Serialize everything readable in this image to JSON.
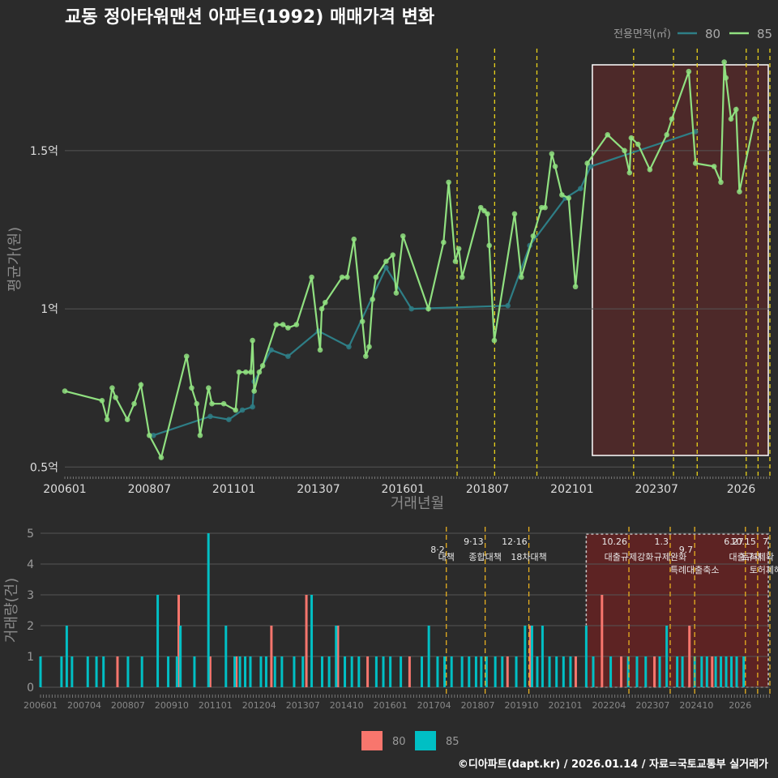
{
  "title": "교동 정아타워맨션 아파트(1992) 매매가격 변화",
  "footer": "©디아파트(dapt.kr) / 2026.01.14 / 자료=국토교통부 실거래가",
  "colors": {
    "bg": "#2b2b2b",
    "grid": "#555555",
    "s80_line": "#2e7e86",
    "s85_line": "#90e080",
    "bar80": "#f8766d",
    "bar85": "#00bfc4",
    "policy": "#e8d11a",
    "highlight": "#5a2a2a"
  },
  "chart_data": [
    {
      "type": "line",
      "name": "price",
      "title": "교동 정아타워맨션 아파트(1992) 매매가격 변화",
      "xlabel": "거래년월",
      "ylabel": "평균가(원)",
      "legend_title": "전용면적(㎡)",
      "legend_position": "top-right",
      "x_ticks": [
        "200601",
        "200807",
        "201101",
        "201307",
        "201601",
        "201807",
        "202101",
        "202307",
        "2026"
      ],
      "y_ticks": [
        "0.5억",
        "1억",
        "1.5억"
      ],
      "ylim": [
        0.47,
        1.83
      ],
      "unit": "억원",
      "series": [
        {
          "name": "80",
          "x": [
            2008.62,
            2010.3,
            2010.85,
            2011.25,
            2011.55,
            2011.6,
            2012.1,
            2012.6,
            2013.5,
            2014.4,
            2015.5,
            2016.25,
            2019.1,
            2019.75,
            2020.8,
            2021.25,
            2021.55,
            2024.65
          ],
          "y": [
            0.6,
            0.66,
            0.65,
            0.68,
            0.69,
            0.77,
            0.87,
            0.85,
            0.93,
            0.88,
            1.13,
            1.0,
            1.01,
            1.2,
            1.35,
            1.38,
            1.45,
            1.56
          ]
        },
        {
          "name": "85",
          "x": [
            2006.0,
            2007.1,
            2007.25,
            2007.4,
            2007.5,
            2007.85,
            2008.05,
            2008.25,
            2008.5,
            2008.85,
            2009.6,
            2009.75,
            2009.9,
            2010.0,
            2010.25,
            2010.35,
            2010.7,
            2011.05,
            2011.15,
            2011.35,
            2011.5,
            2011.55,
            2011.6,
            2011.75,
            2011.85,
            2012.25,
            2012.45,
            2012.6,
            2012.85,
            2013.3,
            2013.55,
            2013.6,
            2013.7,
            2014.2,
            2014.35,
            2014.55,
            2014.8,
            2014.9,
            2015.0,
            2015.1,
            2015.2,
            2015.5,
            2015.7,
            2015.8,
            2016.0,
            2016.75,
            2017.2,
            2017.35,
            2017.55,
            2017.65,
            2017.75,
            2018.3,
            2018.4,
            2018.5,
            2018.55,
            2018.7,
            2019.3,
            2019.5,
            2019.85,
            2020.1,
            2020.2,
            2020.4,
            2020.5,
            2020.7,
            2020.9,
            2021.1,
            2021.45,
            2022.05,
            2022.55,
            2022.7,
            2022.75,
            2022.95,
            2023.3,
            2023.8,
            2023.95,
            2024.45,
            2024.65,
            2025.2,
            2025.4,
            2025.5,
            2025.55,
            2025.7,
            2025.85,
            2025.95,
            2026.4
          ],
          "y": [
            0.74,
            0.71,
            0.65,
            0.75,
            0.72,
            0.65,
            0.7,
            0.76,
            0.6,
            0.53,
            0.85,
            0.75,
            0.7,
            0.6,
            0.75,
            0.7,
            0.7,
            0.68,
            0.8,
            0.8,
            0.8,
            0.9,
            0.74,
            0.8,
            0.82,
            0.95,
            0.95,
            0.94,
            0.95,
            1.1,
            0.87,
            1.0,
            1.02,
            1.1,
            1.1,
            1.22,
            0.96,
            0.85,
            0.88,
            1.03,
            1.1,
            1.15,
            1.17,
            1.05,
            1.23,
            1.0,
            1.21,
            1.4,
            1.15,
            1.19,
            1.1,
            1.32,
            1.31,
            1.3,
            1.2,
            0.9,
            1.3,
            1.1,
            1.23,
            1.32,
            1.32,
            1.49,
            1.45,
            1.36,
            1.35,
            1.07,
            1.46,
            1.55,
            1.5,
            1.43,
            1.54,
            1.52,
            1.44,
            1.55,
            1.6,
            1.75,
            1.46,
            1.45,
            1.4,
            1.78,
            1.73,
            1.6,
            1.63,
            1.37,
            1.6
          ]
        }
      ]
    },
    {
      "type": "bar",
      "name": "volume",
      "ylabel": "거래량(건)",
      "x_ticks": [
        "200601",
        "200704",
        "200807",
        "200910",
        "201101",
        "201204",
        "201307",
        "201410",
        "201601",
        "201704",
        "201807",
        "201910",
        "202101",
        "202204",
        "202307",
        "202410",
        "2026"
      ],
      "y_ticks": [
        "0",
        "1",
        "2",
        "3",
        "4",
        "5"
      ],
      "ylim": [
        0,
        5
      ],
      "unit": "건",
      "legend_position": "bottom",
      "series": [
        {
          "name": "80",
          "x": [
            2008.2,
            2009.95,
            2010.85,
            2011.6,
            2012.6,
            2013.6,
            2014.5,
            2015.35,
            2016.55,
            2019.35,
            2020.0,
            2021.3,
            2022.05,
            2022.6,
            2023.55,
            2024.55,
            2025.2
          ],
          "y": [
            1,
            3,
            1,
            1,
            2,
            3,
            2,
            1,
            1,
            1,
            2,
            1,
            3,
            1,
            1,
            2,
            1
          ]
        },
        {
          "name": "85",
          "x": [
            2006.0,
            2006.6,
            2006.75,
            2006.9,
            2007.35,
            2007.6,
            2007.8,
            2008.5,
            2008.9,
            2009.35,
            2009.65,
            2009.9,
            2010.0,
            2010.4,
            2010.8,
            2011.3,
            2011.55,
            2011.7,
            2011.85,
            2012.0,
            2012.3,
            2012.45,
            2012.7,
            2012.9,
            2013.25,
            2013.5,
            2013.75,
            2014.05,
            2014.25,
            2014.45,
            2014.7,
            2014.9,
            2015.1,
            2015.6,
            2015.8,
            2016.0,
            2016.3,
            2016.9,
            2017.1,
            2017.35,
            2017.55,
            2017.75,
            2018.05,
            2018.25,
            2018.45,
            2018.6,
            2018.75,
            2019.0,
            2019.2,
            2019.6,
            2019.85,
            2020.05,
            2020.2,
            2020.35,
            2020.55,
            2020.75,
            2020.95,
            2021.15,
            2021.6,
            2021.8,
            2022.3,
            2022.8,
            2023.05,
            2023.3,
            2023.7,
            2023.9,
            2024.2,
            2024.35,
            2024.7,
            2024.9,
            2025.05,
            2025.3,
            2025.45,
            2025.6,
            2025.75,
            2025.9,
            2026.1
          ],
          "y": [
            1,
            1,
            2,
            1,
            1,
            1,
            1,
            1,
            1,
            3,
            1,
            1,
            2,
            1,
            5,
            2,
            1,
            1,
            1,
            1,
            1,
            1,
            1,
            1,
            1,
            1,
            3,
            1,
            1,
            2,
            1,
            1,
            1,
            1,
            1,
            1,
            1,
            1,
            2,
            1,
            1,
            1,
            1,
            1,
            1,
            1,
            1,
            1,
            1,
            1,
            2,
            2,
            1,
            2,
            1,
            1,
            1,
            1,
            2,
            1,
            1,
            1,
            1,
            1,
            1,
            2,
            1,
            1,
            1,
            1,
            1,
            1,
            1,
            1,
            1,
            1,
            1
          ]
        }
      ]
    }
  ],
  "policy_events": [
    {
      "x": 2017.6,
      "date": "8·2",
      "label": "대책",
      "date_line": 1,
      "label_line": 1
    },
    {
      "x": 2018.71,
      "date": "9·13",
      "label": "종합대책",
      "date_line": 0,
      "label_line": 1
    },
    {
      "x": 2019.96,
      "date": "12·16",
      "label": "18차대책",
      "date_line": 0,
      "label_line": 1
    },
    {
      "x": 2022.82,
      "date": "10.26",
      "label": "대출규제강화",
      "date_line": 0,
      "label_line": 1
    },
    {
      "x": 2024.0,
      "date": "1.3",
      "label": "규제완화",
      "date_line": 0,
      "label_line": 1
    },
    {
      "x": 2024.7,
      "date": "9.7",
      "label": "특례대출축소",
      "date_line": 1,
      "label_line": 2
    },
    {
      "x": 2026.15,
      "date": "6.27",
      "label": "대출규제",
      "date_line": 0,
      "label_line": 1
    },
    {
      "x": 2026.5,
      "date": "10.15",
      "label": "토허제확",
      "date_line": 0,
      "label_line": 1
    },
    {
      "x": 2026.85,
      "date": "7",
      "label": "토허제해제",
      "date_line": 0,
      "label_line": 2
    }
  ],
  "highlight_range": [
    2021.6,
    2026.85
  ]
}
